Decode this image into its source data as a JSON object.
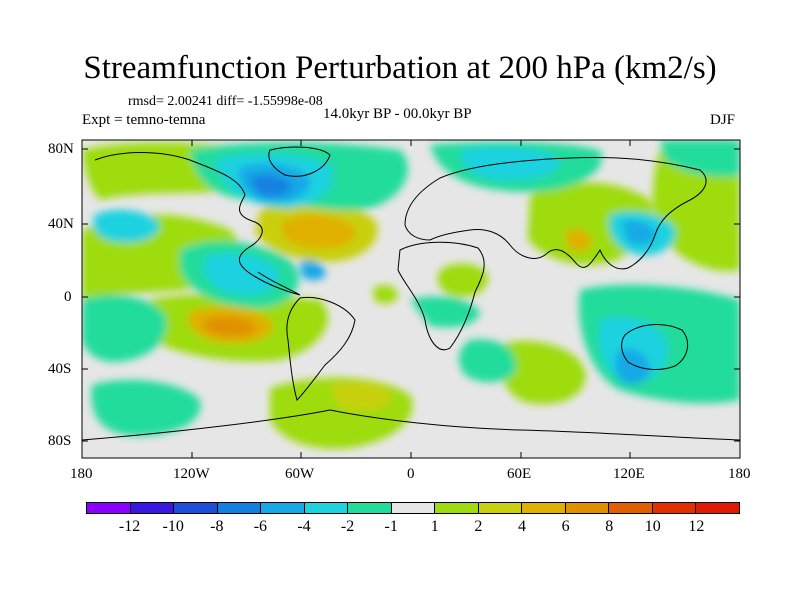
{
  "header": {
    "title": "Streamfunction Perturbation at 200 hPa (km2/s)",
    "stats": "rmsd= 2.00241 diff= -1.55998e-08",
    "experiment": "Expt = temno-temna",
    "period": "14.0kyr BP - 00.0kyr BP",
    "season": "DJF"
  },
  "axes": {
    "y_ticks": [
      "80N",
      "40N",
      "0",
      "40S",
      "80S"
    ],
    "x_ticks": [
      "180",
      "120W",
      "60W",
      "0",
      "60E",
      "120E",
      "180"
    ]
  },
  "colorbar": {
    "colors": [
      "#8b00ff",
      "#3a16e0",
      "#1e4fd8",
      "#1380e0",
      "#16a9e6",
      "#1ed2e0",
      "#22dc9c",
      "#e6e6e6",
      "#9edc10",
      "#c8d010",
      "#e0b000",
      "#e09000",
      "#e06000",
      "#e03000",
      "#e01a00"
    ],
    "labels": [
      "-12",
      "-10",
      "-8",
      "-6",
      "-4",
      "-2",
      "-1",
      "1",
      "2",
      "4",
      "6",
      "8",
      "10",
      "12"
    ]
  },
  "chart_data": {
    "type": "heatmap",
    "title": "Streamfunction Perturbation at 200 hPa (km2/s)",
    "subtitle": "14.0kyr BP - 00.0kyr BP",
    "xlabel": "",
    "ylabel": "",
    "xlim": [
      -180,
      180
    ],
    "ylim": [
      -90,
      90
    ],
    "levels": [
      -12,
      -10,
      -8,
      -6,
      -4,
      -2,
      -1,
      1,
      2,
      4,
      6,
      8,
      10,
      12
    ],
    "rmsd": 2.00241,
    "diff": -1.55998e-08
  }
}
